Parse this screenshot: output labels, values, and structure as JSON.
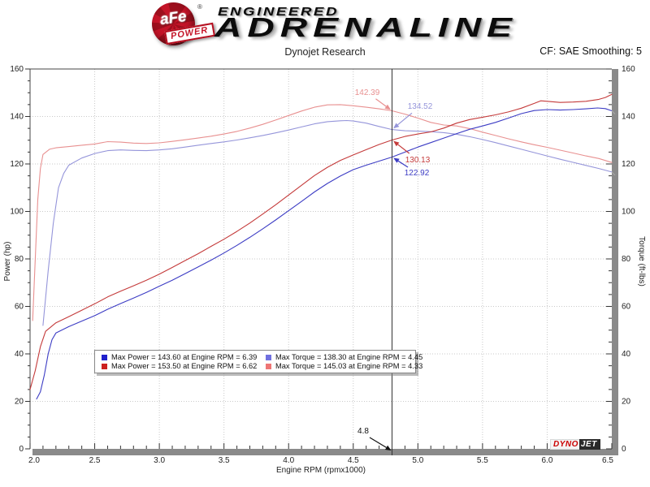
{
  "header": {
    "badge": {
      "top": "aFe",
      "reg": "®",
      "banner": "POWER"
    },
    "brand_line1": "ENGINEERED",
    "brand_line2": "ADRENALINE",
    "subtitle": "Dynojet Research",
    "correction_info": "CF: SAE Smoothing: 5"
  },
  "chart_data": {
    "type": "line",
    "title": "Dynojet Research",
    "xlabel": "Engine RPM (rpmx1000)",
    "ylabel_left": "Power (hp)",
    "ylabel_right": "Torque (ft-lbs)",
    "xlim": [
      2.0,
      6.5
    ],
    "ylim_left": [
      0,
      160
    ],
    "ylim_right": [
      0,
      160
    ],
    "x_tick_labels": [
      "2.0",
      "2.5",
      "3.0",
      "3.5",
      "4.0",
      "4.5",
      "5.0",
      "5.5",
      "6.0",
      "6.5"
    ],
    "x_minor_step": 0.1,
    "y_tick_labels": [
      "0",
      "20",
      "40",
      "60",
      "80",
      "100",
      "120",
      "140",
      "160"
    ],
    "y_minor_step": 5,
    "grid": "dotted",
    "grid_color": "#c9c9c9",
    "cursor": {
      "rpm": 4.8,
      "label": "4.8"
    },
    "series": [
      {
        "id": "torque_red",
        "axis": "right",
        "color": "#e89090",
        "legend": "Max Torque = 145.03 at Engine RPM = 4.33",
        "points": [
          [
            2.02,
            54
          ],
          [
            2.04,
            80
          ],
          [
            2.06,
            105
          ],
          [
            2.08,
            118
          ],
          [
            2.1,
            124
          ],
          [
            2.15,
            126.2
          ],
          [
            2.2,
            126.8
          ],
          [
            2.3,
            127.3
          ],
          [
            2.4,
            127.9
          ],
          [
            2.5,
            128.4
          ],
          [
            2.6,
            129.4
          ],
          [
            2.7,
            129.2
          ],
          [
            2.8,
            128.8
          ],
          [
            2.9,
            128.6
          ],
          [
            3.0,
            128.9
          ],
          [
            3.1,
            129.5
          ],
          [
            3.2,
            130.2
          ],
          [
            3.3,
            130.9
          ],
          [
            3.4,
            131.7
          ],
          [
            3.5,
            132.6
          ],
          [
            3.6,
            133.7
          ],
          [
            3.7,
            135.1
          ],
          [
            3.8,
            136.7
          ],
          [
            3.9,
            138.5
          ],
          [
            4.0,
            140.4
          ],
          [
            4.1,
            142.3
          ],
          [
            4.2,
            143.9
          ],
          [
            4.3,
            144.9
          ],
          [
            4.4,
            145.0
          ],
          [
            4.5,
            144.5
          ],
          [
            4.6,
            143.9
          ],
          [
            4.7,
            143.2
          ],
          [
            4.8,
            142.4
          ],
          [
            4.9,
            141.0
          ],
          [
            5.0,
            139.3
          ],
          [
            5.1,
            137.5
          ],
          [
            5.2,
            136.4
          ],
          [
            5.3,
            136.0
          ],
          [
            5.4,
            134.9
          ],
          [
            5.5,
            133.4
          ],
          [
            5.6,
            132.0
          ],
          [
            5.7,
            130.6
          ],
          [
            5.8,
            129.3
          ],
          [
            5.9,
            128.1
          ],
          [
            6.0,
            127.0
          ],
          [
            6.1,
            125.8
          ],
          [
            6.2,
            124.6
          ],
          [
            6.3,
            123.4
          ],
          [
            6.4,
            122.3
          ],
          [
            6.5,
            120.6
          ]
        ]
      },
      {
        "id": "torque_blue",
        "axis": "right",
        "color": "#9595da",
        "legend": "Max Torque = 138.30 at Engine RPM = 4.45",
        "points": [
          [
            2.1,
            52
          ],
          [
            2.14,
            75
          ],
          [
            2.18,
            95
          ],
          [
            2.22,
            110
          ],
          [
            2.26,
            116
          ],
          [
            2.3,
            119.5
          ],
          [
            2.4,
            122.5
          ],
          [
            2.5,
            124.4
          ],
          [
            2.6,
            125.6
          ],
          [
            2.7,
            125.9
          ],
          [
            2.8,
            125.7
          ],
          [
            2.9,
            125.6
          ],
          [
            3.0,
            125.9
          ],
          [
            3.1,
            126.4
          ],
          [
            3.2,
            127.1
          ],
          [
            3.3,
            127.9
          ],
          [
            3.4,
            128.6
          ],
          [
            3.5,
            129.3
          ],
          [
            3.6,
            130.1
          ],
          [
            3.7,
            131.0
          ],
          [
            3.8,
            132.0
          ],
          [
            3.9,
            133.1
          ],
          [
            4.0,
            134.3
          ],
          [
            4.1,
            135.6
          ],
          [
            4.2,
            136.9
          ],
          [
            4.3,
            137.8
          ],
          [
            4.4,
            138.2
          ],
          [
            4.45,
            138.3
          ],
          [
            4.5,
            138.1
          ],
          [
            4.6,
            137.2
          ],
          [
            4.7,
            135.8
          ],
          [
            4.8,
            134.5
          ],
          [
            4.9,
            134.0
          ],
          [
            5.0,
            133.8
          ],
          [
            5.1,
            133.6
          ],
          [
            5.2,
            133.2
          ],
          [
            5.3,
            132.5
          ],
          [
            5.4,
            131.5
          ],
          [
            5.5,
            130.3
          ],
          [
            5.6,
            129.0
          ],
          [
            5.7,
            127.6
          ],
          [
            5.8,
            126.2
          ],
          [
            5.9,
            124.8
          ],
          [
            6.0,
            123.4
          ],
          [
            6.1,
            122.0
          ],
          [
            6.2,
            120.7
          ],
          [
            6.3,
            119.4
          ],
          [
            6.4,
            118.1
          ],
          [
            6.5,
            116.6
          ]
        ]
      },
      {
        "id": "power_red",
        "axis": "left",
        "color": "#c43a3a",
        "legend": "Max Power = 153.50 at Engine RPM = 6.62",
        "points": [
          [
            2.0,
            25
          ],
          [
            2.04,
            33
          ],
          [
            2.08,
            43
          ],
          [
            2.12,
            49.5
          ],
          [
            2.2,
            53.1
          ],
          [
            2.3,
            55.7
          ],
          [
            2.4,
            58.4
          ],
          [
            2.5,
            61.1
          ],
          [
            2.6,
            64.0
          ],
          [
            2.7,
            66.4
          ],
          [
            2.8,
            68.7
          ],
          [
            2.9,
            71.0
          ],
          [
            3.0,
            73.6
          ],
          [
            3.1,
            76.4
          ],
          [
            3.2,
            79.3
          ],
          [
            3.3,
            82.2
          ],
          [
            3.4,
            85.3
          ],
          [
            3.5,
            88.3
          ],
          [
            3.6,
            91.6
          ],
          [
            3.7,
            95.1
          ],
          [
            3.8,
            98.9
          ],
          [
            3.9,
            102.8
          ],
          [
            4.0,
            106.9
          ],
          [
            4.1,
            111.0
          ],
          [
            4.2,
            115.1
          ],
          [
            4.3,
            118.6
          ],
          [
            4.4,
            121.5
          ],
          [
            4.5,
            123.8
          ],
          [
            4.6,
            126.0
          ],
          [
            4.7,
            128.2
          ],
          [
            4.8,
            130.1
          ],
          [
            4.9,
            131.6
          ],
          [
            5.0,
            132.6
          ],
          [
            5.1,
            133.5
          ],
          [
            5.2,
            135.1
          ],
          [
            5.3,
            137.2
          ],
          [
            5.4,
            138.7
          ],
          [
            5.5,
            139.7
          ],
          [
            5.6,
            140.7
          ],
          [
            5.7,
            141.9
          ],
          [
            5.8,
            143.5
          ],
          [
            5.9,
            145.5
          ],
          [
            5.95,
            146.6
          ],
          [
            6.0,
            146.4
          ],
          [
            6.1,
            145.9
          ],
          [
            6.2,
            146.1
          ],
          [
            6.3,
            146.4
          ],
          [
            6.4,
            147.2
          ],
          [
            6.45,
            148.0
          ],
          [
            6.5,
            149.3
          ]
        ]
      },
      {
        "id": "power_blue",
        "axis": "left",
        "color": "#3c3cc4",
        "legend": "Max Power = 143.60 at Engine RPM = 6.39",
        "points": [
          [
            2.05,
            21
          ],
          [
            2.08,
            24
          ],
          [
            2.11,
            31
          ],
          [
            2.14,
            40
          ],
          [
            2.17,
            46
          ],
          [
            2.2,
            48.8
          ],
          [
            2.3,
            51.5
          ],
          [
            2.4,
            53.8
          ],
          [
            2.5,
            56.1
          ],
          [
            2.6,
            58.8
          ],
          [
            2.7,
            61.2
          ],
          [
            2.8,
            63.5
          ],
          [
            2.9,
            65.9
          ],
          [
            3.0,
            68.5
          ],
          [
            3.1,
            71.0
          ],
          [
            3.2,
            73.8
          ],
          [
            3.3,
            76.6
          ],
          [
            3.4,
            79.5
          ],
          [
            3.5,
            82.5
          ],
          [
            3.6,
            85.7
          ],
          [
            3.7,
            89.1
          ],
          [
            3.8,
            92.7
          ],
          [
            3.9,
            96.4
          ],
          [
            4.0,
            100.3
          ],
          [
            4.1,
            104.2
          ],
          [
            4.2,
            108.2
          ],
          [
            4.3,
            111.8
          ],
          [
            4.4,
            114.9
          ],
          [
            4.5,
            117.6
          ],
          [
            4.6,
            119.5
          ],
          [
            4.7,
            121.2
          ],
          [
            4.8,
            122.9
          ],
          [
            4.9,
            125.0
          ],
          [
            5.0,
            127.1
          ],
          [
            5.1,
            129.0
          ],
          [
            5.2,
            130.9
          ],
          [
            5.3,
            132.8
          ],
          [
            5.4,
            134.6
          ],
          [
            5.5,
            136.0
          ],
          [
            5.6,
            137.5
          ],
          [
            5.7,
            139.3
          ],
          [
            5.8,
            141.2
          ],
          [
            5.9,
            142.5
          ],
          [
            6.0,
            142.9
          ],
          [
            6.1,
            142.7
          ],
          [
            6.2,
            142.9
          ],
          [
            6.3,
            143.2
          ],
          [
            6.39,
            143.6
          ],
          [
            6.45,
            143.3
          ],
          [
            6.5,
            142.4
          ]
        ]
      }
    ],
    "legend_order": [
      "power_blue",
      "torque_blue",
      "power_red",
      "torque_red"
    ],
    "legend_swatch_colors": {
      "power_blue": "#2020cc",
      "torque_blue": "#7070e0",
      "power_red": "#cc2020",
      "torque_red": "#ee7575"
    },
    "callouts": [
      {
        "series": "torque_red",
        "value": "142.39"
      },
      {
        "series": "torque_blue",
        "value": "134.52"
      },
      {
        "series": "power_red",
        "value": "130.13"
      },
      {
        "series": "power_blue",
        "value": "122.92"
      }
    ]
  },
  "footer": {
    "dynojet": {
      "part1": "DYNO",
      "part2": "JET"
    }
  }
}
